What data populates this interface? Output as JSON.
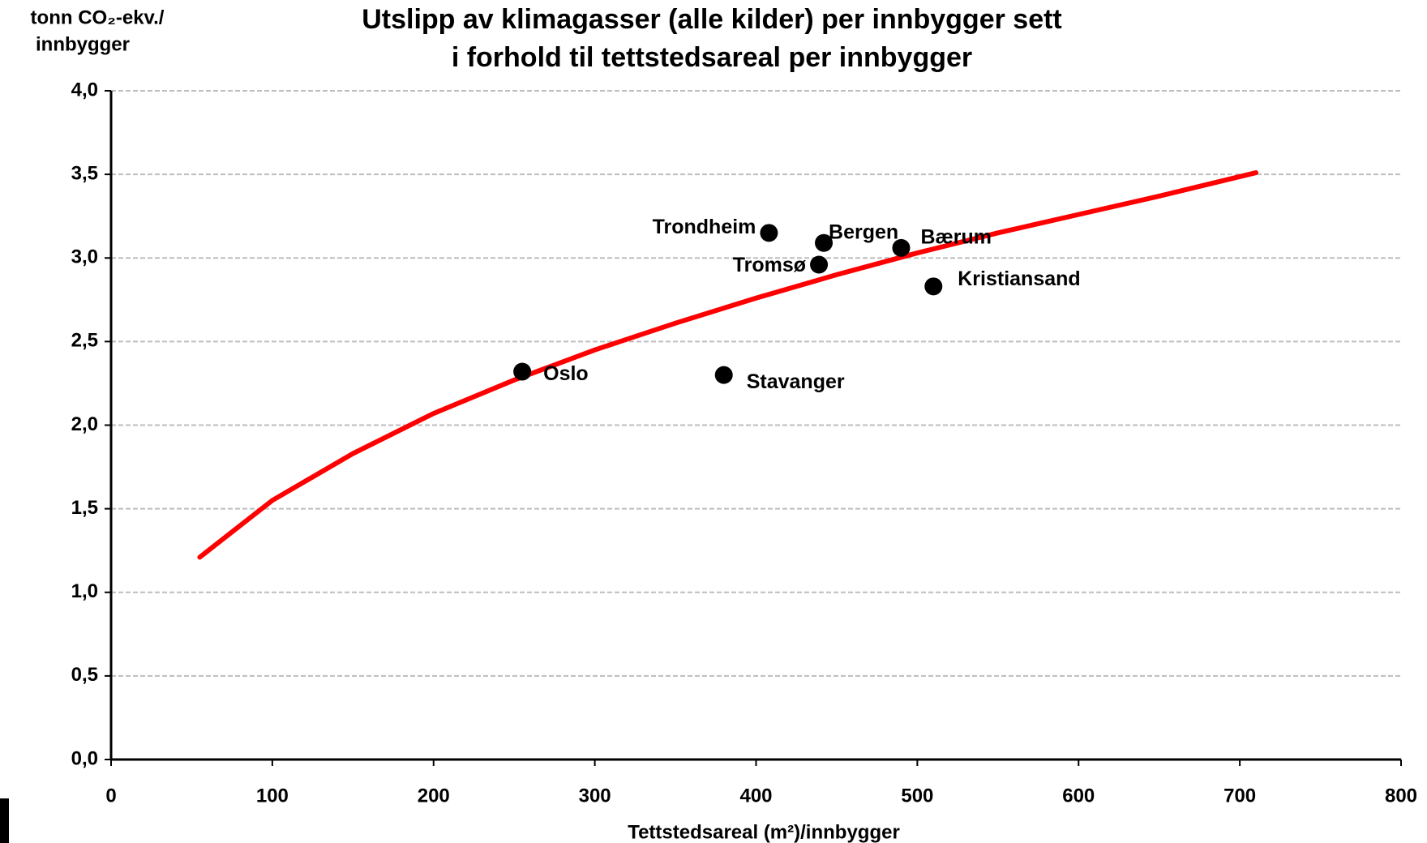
{
  "chart_data": {
    "type": "scatter",
    "title": [
      "Utslipp av klimagasser (alle kilder) per innbygger sett",
      "i forhold til tettstedsareal per innbygger"
    ],
    "ylabel": [
      "tonn CO₂-ekv./",
      "innbygger"
    ],
    "xlabel": "Tettstedsareal (m²)/innbygger",
    "labels": [
      "Oslo",
      "Stavanger",
      "Trondheim",
      "Bergen",
      "Tromsø",
      "Bærum",
      "Kristiansand"
    ],
    "x": [
      255,
      380,
      408,
      442,
      439,
      490,
      510
    ],
    "values": [
      2.32,
      2.3,
      3.15,
      3.09,
      2.96,
      3.06,
      2.83
    ],
    "color": "#000000",
    "trend": {
      "color": "#ff0000",
      "x": [
        55,
        100,
        150,
        200,
        250,
        300,
        350,
        400,
        450,
        500,
        550,
        600,
        650,
        710
      ],
      "values": [
        1.21,
        1.55,
        1.83,
        2.07,
        2.27,
        2.45,
        2.61,
        2.76,
        2.9,
        3.03,
        3.15,
        3.26,
        3.37,
        3.51
      ]
    },
    "xlim": [
      0,
      800
    ],
    "xticks": [
      0,
      100,
      200,
      300,
      400,
      500,
      600,
      700,
      800
    ],
    "ylim": [
      0,
      4
    ],
    "yticks": [
      {
        "value": 0,
        "label": "0,0"
      },
      {
        "value": 0.5,
        "label": "0,5"
      },
      {
        "value": 1,
        "label": "1,0"
      },
      {
        "value": 1.5,
        "label": "1,5"
      },
      {
        "value": 2,
        "label": "2,0"
      },
      {
        "value": 2.5,
        "label": "2,5"
      },
      {
        "value": 3,
        "label": "3,0"
      },
      {
        "value": 3.5,
        "label": "3,5"
      },
      {
        "value": 4,
        "label": "4,0"
      }
    ],
    "grid": true
  }
}
